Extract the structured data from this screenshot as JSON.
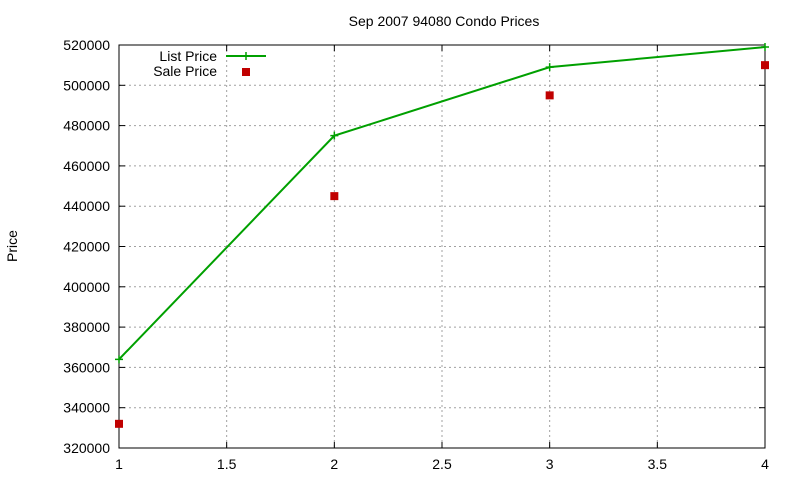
{
  "chart_data": {
    "type": "line",
    "title": "Sep 2007 94080 Condo Prices",
    "xlabel": "",
    "ylabel": "Price",
    "xlim": [
      1,
      4
    ],
    "ylim": [
      320000,
      520000
    ],
    "x_ticks": [
      "1",
      "1.5",
      "2",
      "2.5",
      "3",
      "3.5",
      "4"
    ],
    "y_ticks": [
      "320000",
      "340000",
      "360000",
      "380000",
      "400000",
      "420000",
      "440000",
      "460000",
      "480000",
      "500000",
      "520000"
    ],
    "grid": true,
    "legend_position": "top-left",
    "series": [
      {
        "name": "List Price",
        "style": "linespoints",
        "color": "#00a000",
        "marker": "plus",
        "x": [
          1,
          2,
          3,
          4
        ],
        "y": [
          364000,
          475000,
          509000,
          519000
        ]
      },
      {
        "name": "Sale Price",
        "style": "points",
        "color": "#c00000",
        "marker": "square",
        "x": [
          1,
          2,
          3,
          4
        ],
        "y": [
          332000,
          445000,
          495000,
          510000
        ]
      }
    ]
  }
}
